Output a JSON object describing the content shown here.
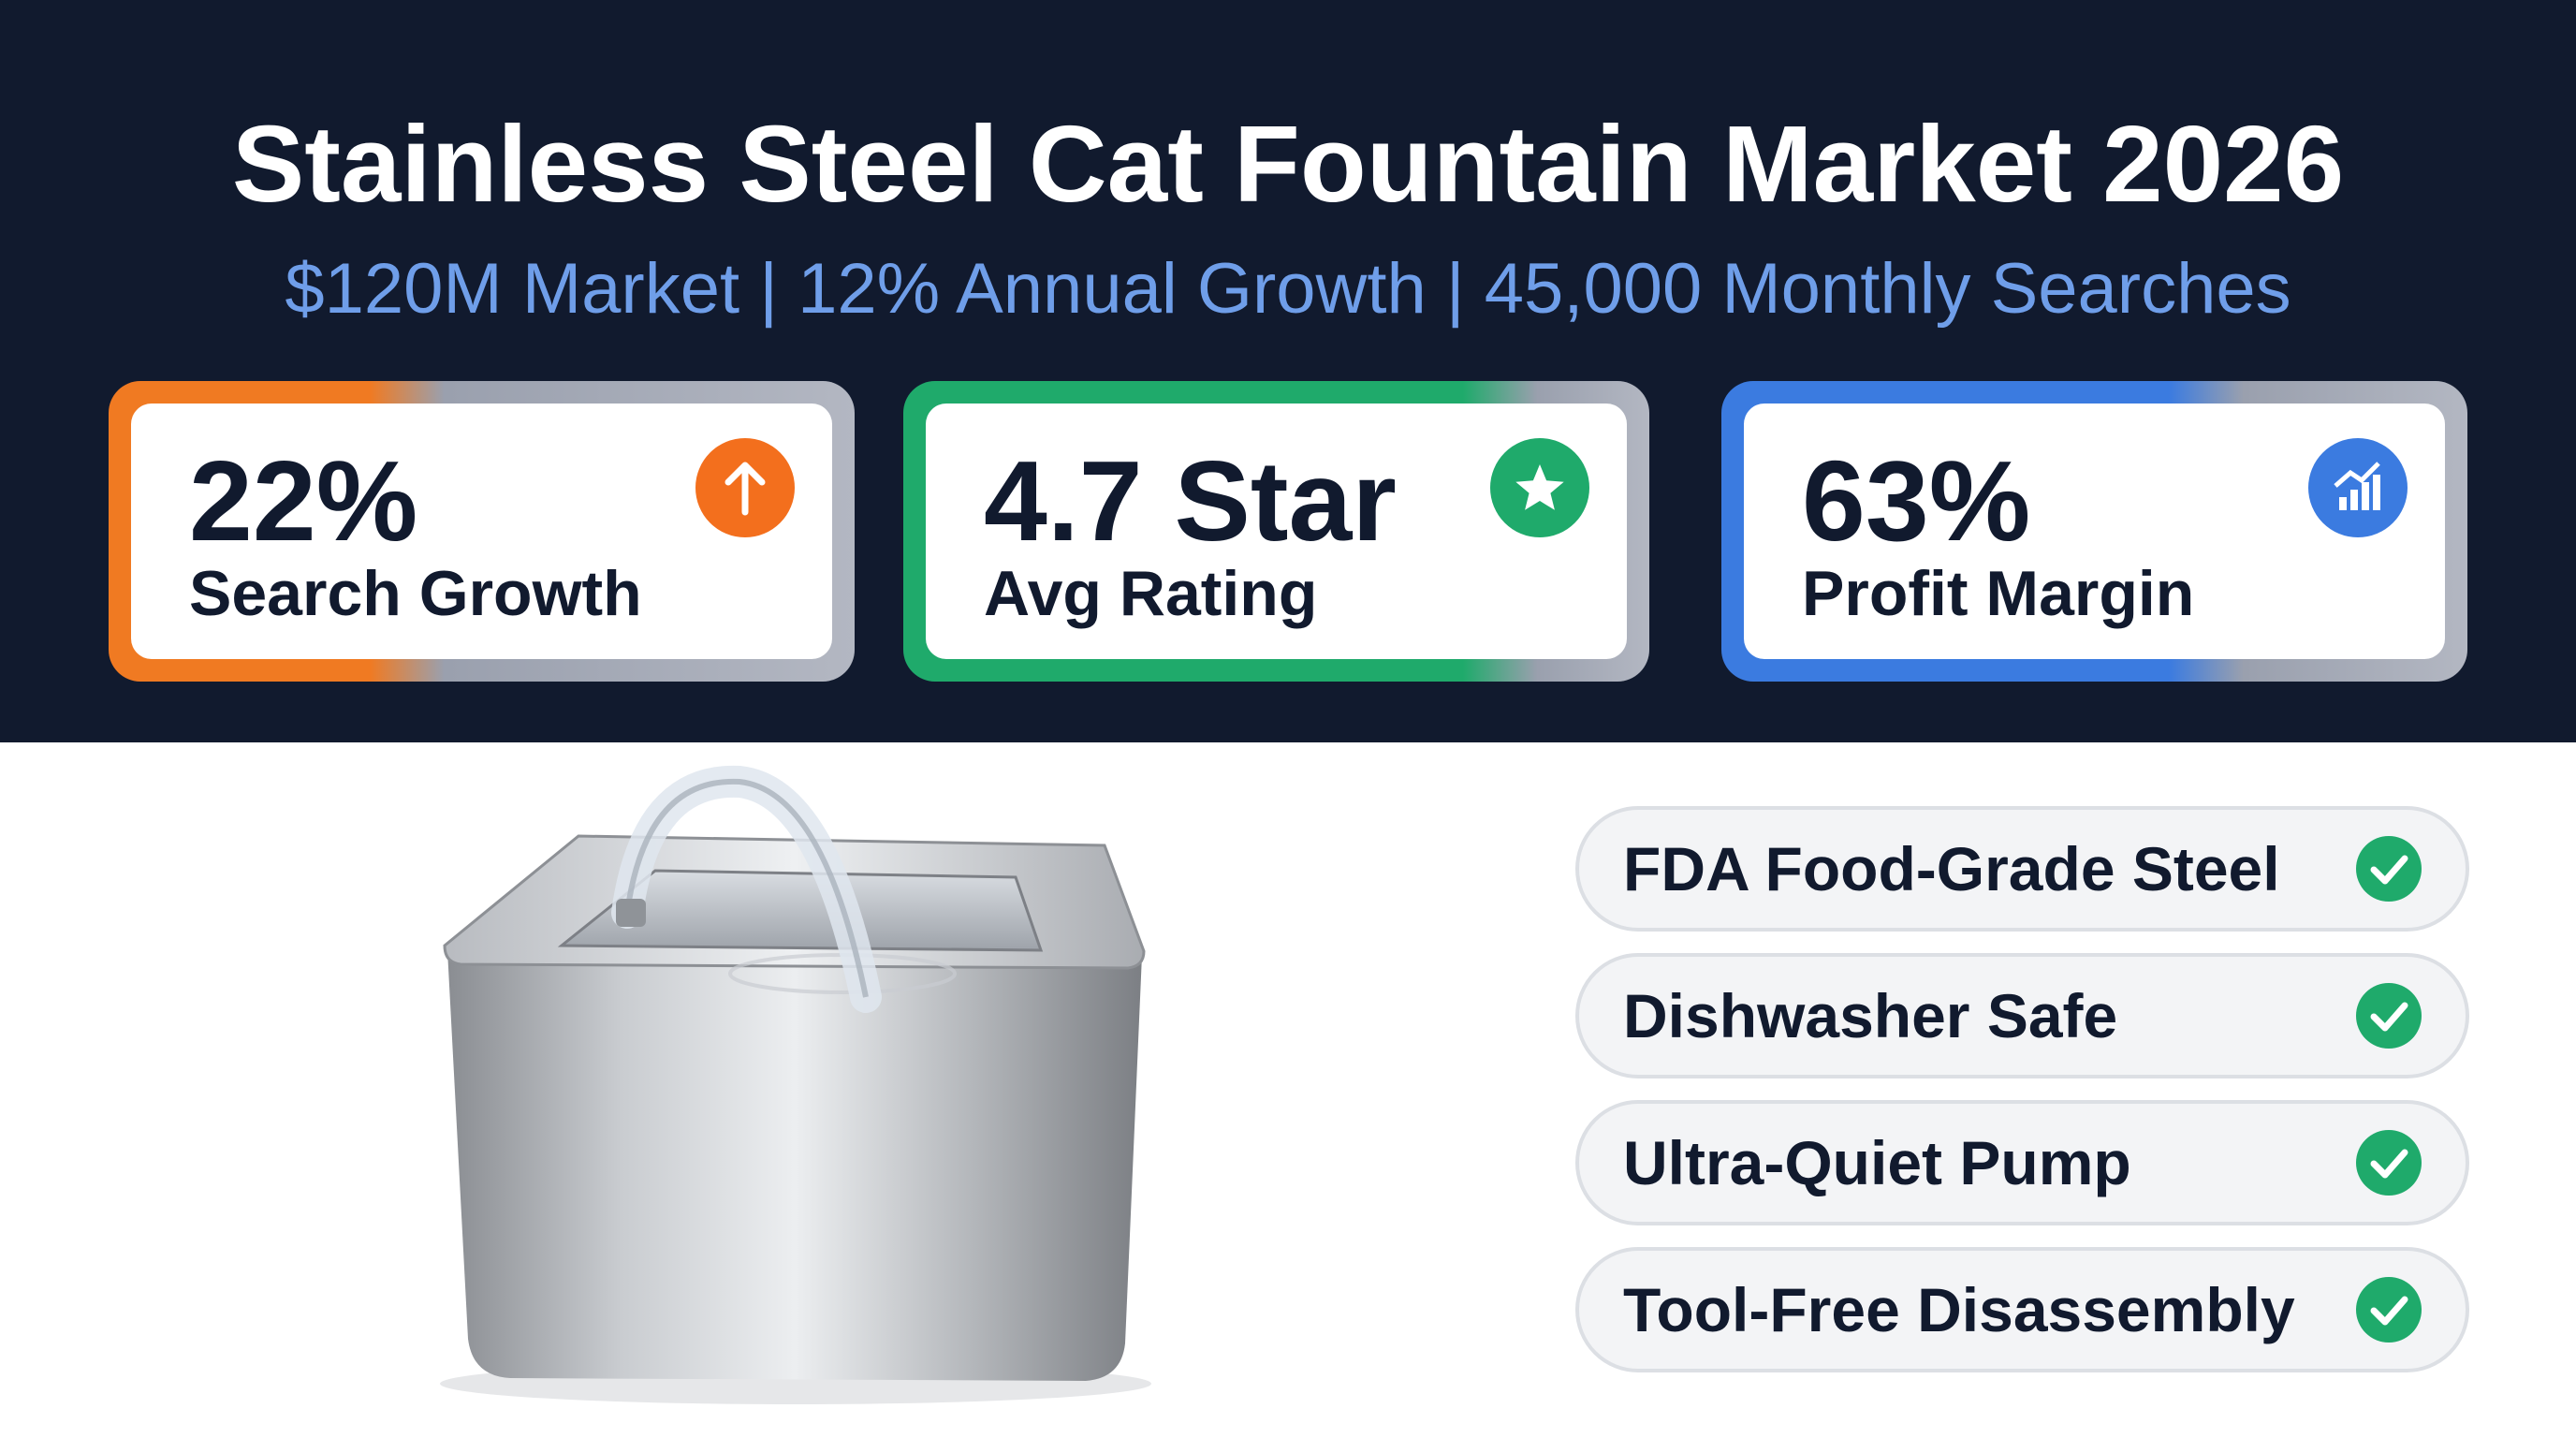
{
  "header": {
    "title": "Stainless Steel Cat Fountain Market 2026",
    "subtitle": "$120M Market | 12% Annual Growth | 45,000 Monthly Searches"
  },
  "stats": [
    {
      "value": "22%",
      "label": "Search Growth"
    },
    {
      "value": "4.7 Star",
      "label": "Avg Rating"
    },
    {
      "value": "63%",
      "label": "Profit Margin"
    }
  ],
  "features": [
    "FDA Food-Grade Steel",
    "Dishwasher Safe",
    "Ultra-Quiet Pump",
    "Tool-Free Disassembly"
  ]
}
